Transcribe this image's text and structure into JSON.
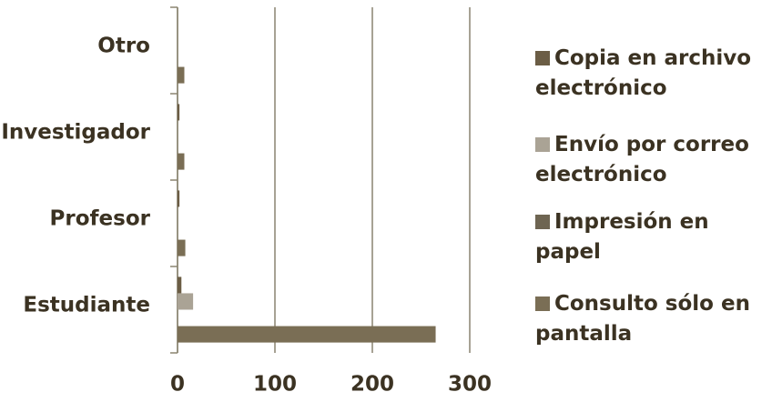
{
  "chart_data": {
    "type": "bar",
    "orientation": "horizontal",
    "categories": [
      "Estudiante",
      "Profesor",
      "Investigador",
      "Otro"
    ],
    "series": [
      {
        "name": "Copia en archivo electrónico",
        "color": "#6b5d45",
        "values": [
          4,
          2,
          2,
          0
        ]
      },
      {
        "name": "Envío por correo electrónico",
        "color": "#aaa395",
        "values": [
          16,
          0,
          0,
          0
        ]
      },
      {
        "name": "Impresión en papel",
        "color": "#6e6552",
        "values": [
          0,
          0,
          0,
          0
        ]
      },
      {
        "name": "Consulto sólo en pantalla",
        "color": "#7a6e55",
        "values": [
          265,
          8,
          7,
          7
        ]
      }
    ],
    "xlim": [
      0,
      300
    ],
    "xticks": [
      0,
      100,
      200,
      300
    ],
    "grid": true
  }
}
